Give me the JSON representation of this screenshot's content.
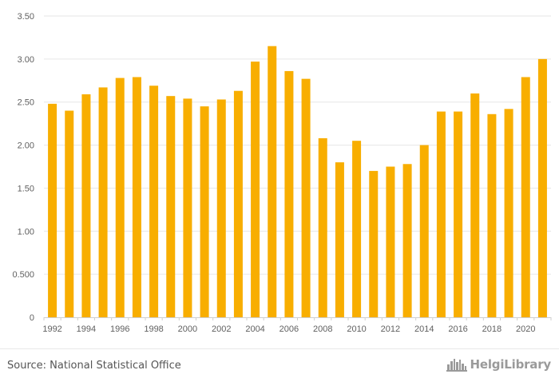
{
  "chart_data": {
    "type": "bar",
    "categories": [
      "1992",
      "1993",
      "1994",
      "1995",
      "1996",
      "1997",
      "1998",
      "1999",
      "2000",
      "2001",
      "2002",
      "2003",
      "2004",
      "2005",
      "2006",
      "2007",
      "2008",
      "2009",
      "2010",
      "2011",
      "2012",
      "2013",
      "2014",
      "2015",
      "2016",
      "2017",
      "2018",
      "2019",
      "2020",
      "2021"
    ],
    "values": [
      2.48,
      2.4,
      2.59,
      2.67,
      2.78,
      2.79,
      2.69,
      2.57,
      2.54,
      2.45,
      2.53,
      2.63,
      2.97,
      3.15,
      2.86,
      2.77,
      2.08,
      1.8,
      2.05,
      1.7,
      1.75,
      1.78,
      2.0,
      2.39,
      2.39,
      2.6,
      2.36,
      2.42,
      2.79,
      3.0
    ],
    "x_tick_labels": [
      "1992",
      "1994",
      "1996",
      "1998",
      "2000",
      "2002",
      "2004",
      "2006",
      "2008",
      "2010",
      "2012",
      "2014",
      "2016",
      "2018",
      "2020"
    ],
    "y_ticks": [
      0,
      0.5,
      1.0,
      1.5,
      2.0,
      2.5,
      3.0,
      3.5
    ],
    "y_tick_labels": [
      "0",
      "0.500",
      "1.00",
      "1.50",
      "2.00",
      "2.50",
      "3.00",
      "3.50"
    ],
    "ylim": [
      0,
      3.5
    ],
    "title": "",
    "xlabel": "",
    "ylabel": "",
    "grid": true,
    "legend": "none",
    "bar_color": "#F8AE00",
    "grid_color": "#e6e6e6",
    "axis_text_color": "#606060"
  },
  "footer": {
    "source": "Source: National Statistical Office",
    "logo_text": "HelgiLibrary",
    "logo_icon": "city-skyline-icon"
  }
}
